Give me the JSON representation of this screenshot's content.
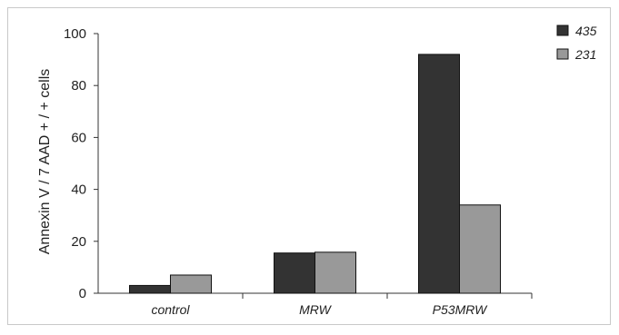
{
  "chart_data": {
    "type": "bar",
    "ylabel": "Annexin V / 7 AAD + / + cells",
    "ylim": [
      0,
      100
    ],
    "yticks": [
      "0",
      "20",
      "40",
      "60",
      "80",
      "100"
    ],
    "categories": [
      "control",
      "MRW",
      "P53MRW"
    ],
    "series": [
      {
        "name": "435",
        "color": "#333333",
        "values": [
          3,
          15.5,
          92
        ]
      },
      {
        "name": "231",
        "color": "#999999",
        "values": [
          7,
          15.8,
          34
        ]
      }
    ],
    "legend": "top-right",
    "grid": false
  }
}
